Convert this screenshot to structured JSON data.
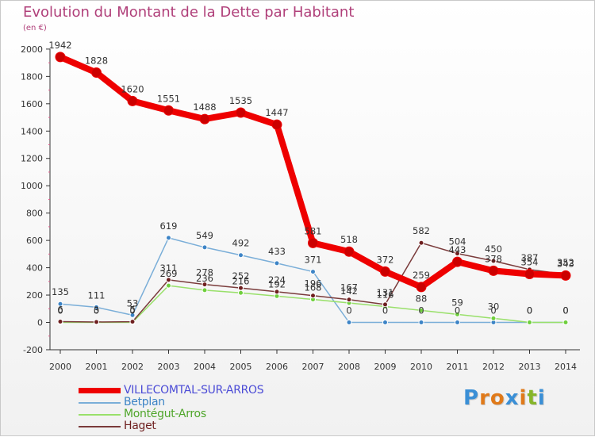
{
  "title": "Evolution du Montant de la Dette par Habitant",
  "unit": "(en €)",
  "brand": "Proxiti",
  "brand_colors": [
    "#3a8fd6",
    "#e07a1a",
    "#e07a1a",
    "#3a8fd6",
    "#e07a1a",
    "#86b52a",
    "#3a8fd6"
  ],
  "chart_data": {
    "type": "line",
    "x": [
      "2000",
      "2001",
      "2002",
      "2003",
      "2004",
      "2005",
      "2006",
      "2007",
      "2008",
      "2009",
      "2010",
      "2011",
      "2012",
      "2013",
      "2014"
    ],
    "ylim": [
      -200,
      2000
    ],
    "yticks": [
      -200,
      0,
      200,
      400,
      600,
      800,
      1000,
      1200,
      1400,
      1600,
      1800,
      2000
    ],
    "grid": false,
    "legend_position": "bottom-left",
    "series": [
      {
        "name": "VILLECOMTAL-SUR-ARROS",
        "color": "#ee0000",
        "marker": "#cc0000",
        "text_color": "#4b4bd6",
        "values": [
          1942,
          1828,
          1620,
          1551,
          1488,
          1535,
          1447,
          581,
          518,
          372,
          259,
          443,
          378,
          354,
          343
        ],
        "labels": [
          "1942",
          "1828",
          "1620",
          "1551",
          "1488",
          "1535",
          "1447",
          "581",
          "518",
          "372",
          "259",
          "443",
          "378",
          "354",
          "343"
        ]
      },
      {
        "name": "Betplan",
        "color": "#7aaed8",
        "marker": "#3d84c6",
        "text_color": "#3d84c6",
        "values": [
          135,
          111,
          53,
          619,
          549,
          492,
          433,
          371,
          0,
          0,
          0,
          0,
          0,
          0,
          0
        ],
        "labels": [
          "135",
          "111",
          "53",
          "619",
          "549",
          "492",
          "433",
          "371",
          "0",
          "0",
          "0",
          "0",
          "0",
          "0",
          "0"
        ]
      },
      {
        "name": "Montégut-Arros",
        "color": "#99e06a",
        "marker": "#6fcf3d",
        "text_color": "#4fa62a",
        "values": [
          0,
          0,
          0,
          269,
          236,
          216,
          192,
          168,
          142,
          116,
          88,
          59,
          30,
          0,
          0
        ],
        "labels": [
          "0",
          "0",
          "0",
          "269",
          "236",
          "216",
          "192",
          "168",
          "142",
          "116",
          "88",
          "59",
          "30",
          "0",
          "0"
        ]
      },
      {
        "name": "Haget",
        "color": "#7a3b3b",
        "marker": "#6e1f1f",
        "text_color": "#6e1f1f",
        "values": [
          6,
          3,
          5,
          311,
          278,
          252,
          224,
          196,
          167,
          131,
          582,
          504,
          450,
          387,
          352
        ],
        "labels": [
          "6",
          "3",
          "5",
          "311",
          "278",
          "252",
          "224",
          "196",
          "167",
          "131",
          "582",
          "504",
          "450",
          "387",
          "352"
        ]
      }
    ]
  }
}
